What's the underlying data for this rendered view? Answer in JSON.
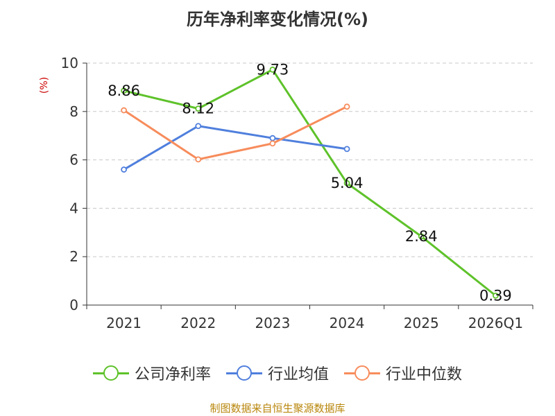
{
  "chart_data": {
    "type": "line",
    "title": "历年净利率变化情况(%)",
    "ylabel": "(%)",
    "xlabel": "",
    "categories": [
      "2021",
      "2022",
      "2023",
      "2024",
      "2025",
      "2026Q1"
    ],
    "ylim": [
      0,
      10
    ],
    "yticks": [
      0,
      2,
      4,
      6,
      8,
      10
    ],
    "grid": "horizontal dashed",
    "legend_position": "bottom",
    "series": [
      {
        "name": "公司净利率",
        "color": "#5ec22a",
        "values": [
          8.86,
          8.12,
          9.73,
          5.04,
          2.84,
          0.39
        ],
        "labels": [
          "8.86",
          "8.12",
          "9.73",
          "5.04",
          "2.84",
          "0.39"
        ]
      },
      {
        "name": "行业均值",
        "color": "#4f7fdd",
        "values": [
          5.6,
          7.4,
          6.9,
          6.45,
          null,
          null
        ]
      },
      {
        "name": "行业中位数",
        "color": "#f78c5c",
        "values": [
          8.05,
          6.02,
          6.68,
          8.2,
          null,
          null
        ]
      }
    ],
    "source": "制图数据来自恒生聚源数据库"
  }
}
